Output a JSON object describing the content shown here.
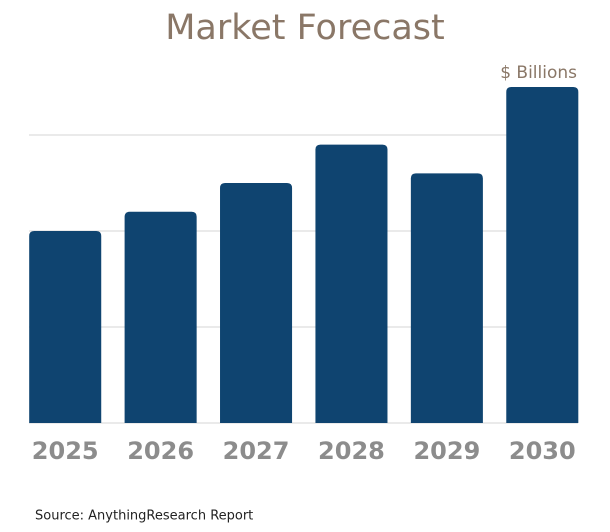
{
  "chart_data": {
    "type": "bar",
    "title": "Market Forecast",
    "unit_label": "$ Billions",
    "source": "Source: AnythingResearch Report",
    "categories": [
      "2025",
      "2026",
      "2027",
      "2028",
      "2029",
      "2030"
    ],
    "values": [
      2.0,
      2.2,
      2.5,
      2.9,
      2.6,
      3.5
    ],
    "color": "#0f4470",
    "ylim": [
      0,
      3.5
    ],
    "yticks": [
      0,
      1,
      2,
      3
    ],
    "grid": true
  }
}
